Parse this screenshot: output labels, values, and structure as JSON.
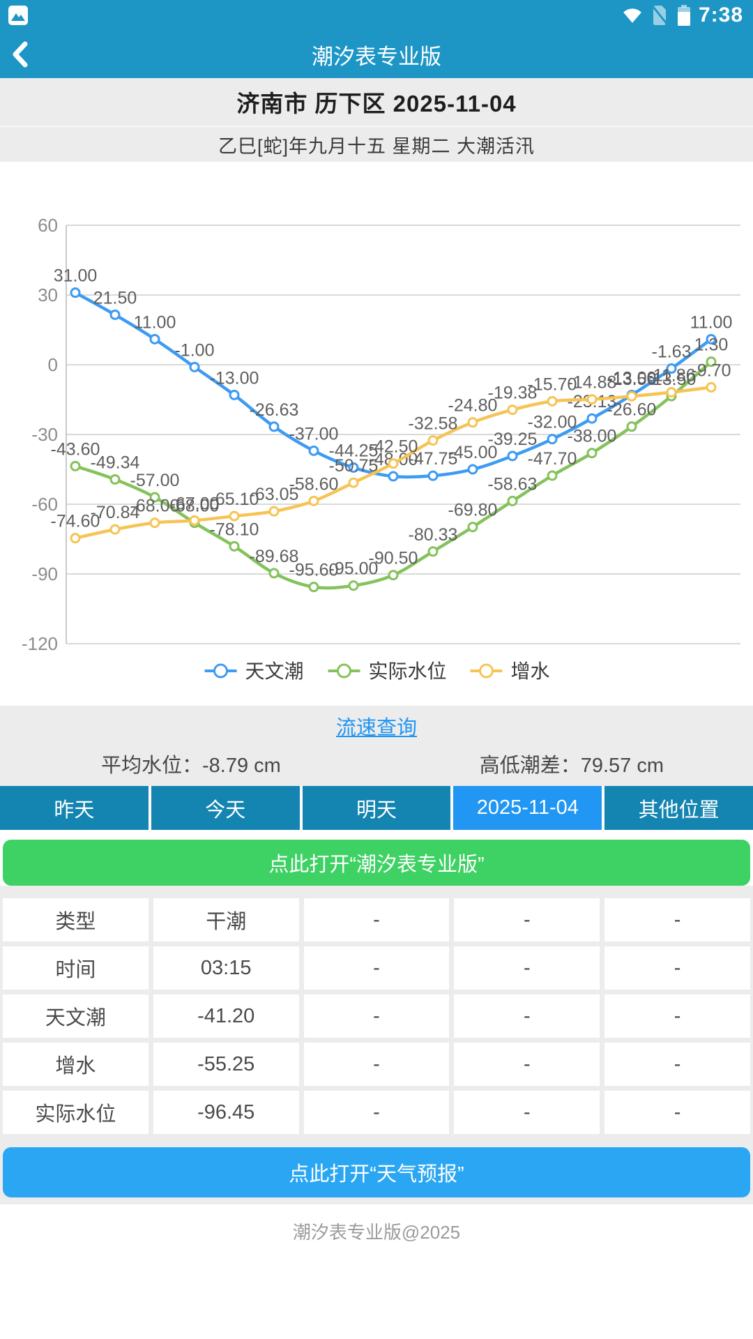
{
  "status": {
    "time": "7:38"
  },
  "header": {
    "title": "潮汐表专业版"
  },
  "location": {
    "title": "济南市 历下区  2025-11-04",
    "subtitle": "乙巳[蛇]年九月十五  星期二  大潮活汛"
  },
  "chart_data": {
    "type": "line",
    "title": "",
    "xlabel": "",
    "ylabel": "",
    "ylim": [
      -120,
      60
    ],
    "y_ticks": [
      60,
      30,
      0,
      -30,
      -60,
      -90,
      -120
    ],
    "grid": true,
    "legend_position": "bottom",
    "point_count": 17,
    "series": [
      {
        "name": "天文潮",
        "color": "#3D9BF3",
        "values": [
          31.0,
          21.5,
          11.0,
          -1.0,
          -13.0,
          -26.63,
          -37.0,
          -44.25,
          -48.0,
          -47.75,
          -45.0,
          -39.25,
          -32.0,
          -23.13,
          -13.0,
          -1.63,
          11.0
        ]
      },
      {
        "name": "实际水位",
        "color": "#84C25B",
        "values": [
          -43.6,
          -49.34,
          -57.0,
          -68.0,
          -78.1,
          -89.68,
          -95.6,
          -95.0,
          -90.5,
          -80.33,
          -69.8,
          -58.63,
          -47.7,
          -38.0,
          -26.6,
          -13.5,
          1.3
        ]
      },
      {
        "name": "增水",
        "color": "#F6C454",
        "values": [
          -74.6,
          -70.84,
          -68.0,
          -67.0,
          -65.1,
          -63.05,
          -58.6,
          -50.75,
          -42.5,
          -32.58,
          -24.8,
          -19.38,
          -15.7,
          -14.88,
          -13.56,
          -11.86,
          -9.7
        ]
      }
    ]
  },
  "info": {
    "link": "流速查询",
    "avg_label": "平均水位：",
    "avg_value": "-8.79 cm",
    "range_label": "高低潮差：",
    "range_value": "79.57 cm"
  },
  "nav": {
    "buttons": [
      {
        "label": "昨天",
        "active": false
      },
      {
        "label": "今天",
        "active": false
      },
      {
        "label": "明天",
        "active": false
      },
      {
        "label": "2025-11-04",
        "active": true
      },
      {
        "label": "其他位置",
        "active": false
      }
    ]
  },
  "promo": {
    "label": "点此打开“潮汐表专业版”"
  },
  "table": {
    "rows": [
      [
        "类型",
        "干潮",
        "-",
        "-",
        "-"
      ],
      [
        "时间",
        "03:15",
        "-",
        "-",
        "-"
      ],
      [
        "天文潮",
        "-41.20",
        "-",
        "-",
        "-"
      ],
      [
        "增水",
        "-55.25",
        "-",
        "-",
        "-"
      ],
      [
        "实际水位",
        "-96.45",
        "-",
        "-",
        "-"
      ]
    ]
  },
  "weather": {
    "label": "点此打开“天气预报”"
  },
  "footer": {
    "text": "潮汐表专业版@2025"
  },
  "colors": {
    "header_teal": "#1D96C6",
    "nav_teal": "#1484B0",
    "active_blue": "#2196F3",
    "green_button": "#3ED164",
    "blue_button": "#2BA6F2",
    "section_gray": "#ECECEC",
    "gridline": "#D9D9D9",
    "axis_text": "#8C8C8C",
    "data_label": "#5E5E5E"
  }
}
